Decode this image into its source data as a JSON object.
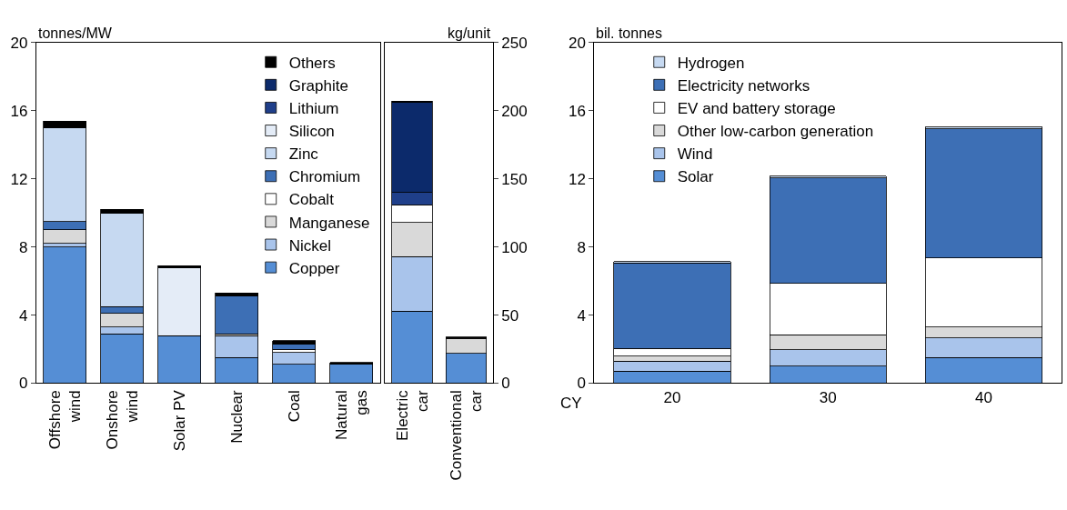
{
  "chart_data": [
    {
      "type": "bar",
      "stacked": true,
      "ylabel": "tonnes/MW",
      "categories": [
        "Offshore\nwind",
        "Onshore\nwind",
        "Solar PV",
        "Nuclear",
        "Coal",
        "Natural\ngas"
      ],
      "ylim": [
        0,
        20
      ],
      "yticks": [
        0,
        4,
        8,
        12,
        16,
        20
      ],
      "legend": "top right",
      "series": [
        {
          "name": "Copper",
          "color": "#558ed5",
          "values": [
            8.0,
            2.9,
            2.8,
            1.5,
            1.1,
            1.1
          ]
        },
        {
          "name": "Nickel",
          "color": "#a9c4eb",
          "values": [
            0.2,
            0.4,
            0,
            1.3,
            0.7,
            0
          ]
        },
        {
          "name": "Manganese",
          "color": "#d9d9d9",
          "values": [
            0.8,
            0.8,
            0,
            0.1,
            0,
            0
          ]
        },
        {
          "name": "Cobalt",
          "color": "#ffffff",
          "values": [
            0,
            0,
            0,
            0,
            0.2,
            0
          ]
        },
        {
          "name": "Chromium",
          "color": "#3d6fb5",
          "values": [
            0.5,
            0.4,
            0,
            2.2,
            0.3,
            0
          ]
        },
        {
          "name": "Zinc",
          "color": "#c6d9f1",
          "values": [
            5.5,
            5.5,
            0,
            0,
            0,
            0
          ]
        },
        {
          "name": "Silicon",
          "color": "#e4ecf7",
          "values": [
            0,
            0,
            4.0,
            0,
            0,
            0
          ]
        },
        {
          "name": "Lithium",
          "color": "#1f3f8a",
          "values": [
            0,
            0,
            0,
            0,
            0,
            0
          ]
        },
        {
          "name": "Graphite",
          "color": "#0c2a6b",
          "values": [
            0,
            0,
            0,
            0,
            0,
            0
          ]
        },
        {
          "name": "Others",
          "color": "#000000",
          "values": [
            0.4,
            0.2,
            0.1,
            0.2,
            0.2,
            0.1
          ]
        }
      ]
    },
    {
      "type": "bar",
      "stacked": true,
      "y2label": "kg/unit",
      "categories": [
        "Electric\ncar",
        "Conventional\ncar"
      ],
      "y2lim": [
        0,
        250
      ],
      "y2ticks": [
        0,
        50,
        100,
        150,
        200,
        250
      ],
      "series": [
        {
          "color": "#558ed5",
          "axis": "y2",
          "values": [
            53,
            22
          ]
        },
        {
          "color": "#a9c4eb",
          "axis": "y2",
          "values": [
            40,
            null
          ]
        },
        {
          "color": "#d9d9d9",
          "axis": "y2",
          "values": [
            25,
            11
          ]
        },
        {
          "color": "#ffffff",
          "axis": "y2",
          "values": [
            13,
            null
          ]
        },
        {
          "color": "#1f3f8a",
          "axis": "y2",
          "values": [
            9,
            null
          ]
        },
        {
          "color": "#0c2a6b",
          "axis": "y2",
          "values": [
            66,
            null
          ]
        },
        {
          "color": "#000000",
          "axis": "y2",
          "values": [
            1,
            1
          ]
        }
      ]
    },
    {
      "type": "bar",
      "stacked": true,
      "ylabel": "bil. tonnes",
      "xlabel": "CY",
      "categories": [
        "20",
        "30",
        "40"
      ],
      "ylim": [
        0,
        20
      ],
      "yticks": [
        0,
        4,
        8,
        12,
        16,
        20
      ],
      "legend": "top left",
      "series": [
        {
          "name": "Solar",
          "color": "#558ed5",
          "values": [
            0.7,
            1.0,
            1.5
          ]
        },
        {
          "name": "Wind",
          "color": "#a9c4eb",
          "values": [
            0.6,
            0.95,
            1.15
          ]
        },
        {
          "name": "Other low-carbon generation",
          "color": "#d9d9d9",
          "values": [
            0.3,
            0.9,
            0.65
          ]
        },
        {
          "name": "EV and battery storage",
          "color": "#ffffff",
          "values": [
            0.45,
            3.0,
            4.05
          ]
        },
        {
          "name": "Electricity networks",
          "color": "#3d6fb5",
          "values": [
            5.0,
            6.2,
            7.6
          ]
        },
        {
          "name": "Hydrogen",
          "color": "#c6d9f1",
          "values": [
            0.1,
            0.1,
            0.1
          ]
        }
      ]
    }
  ]
}
